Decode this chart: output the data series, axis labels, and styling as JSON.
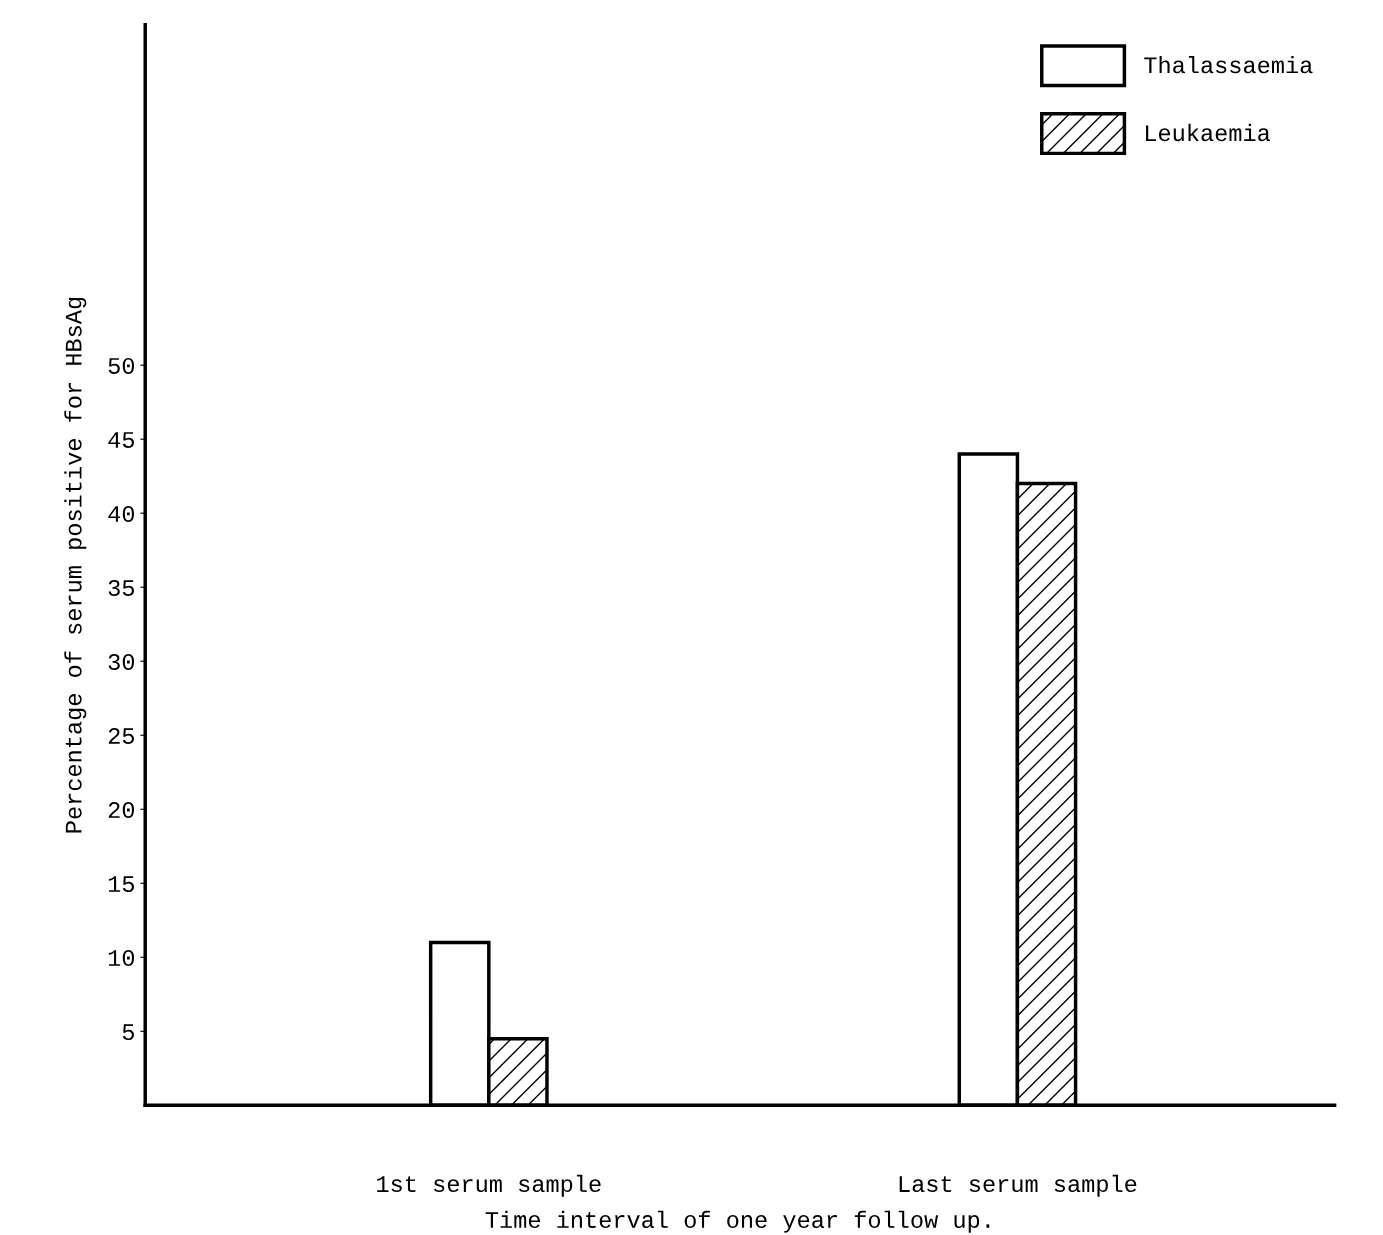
{
  "chart_data": {
    "type": "bar",
    "xlabel": "Time interval of one year follow up.",
    "ylabel": "Percentage of serum positive for HBsAg",
    "categories": [
      "1st serum sample",
      "Last serum sample"
    ],
    "series": [
      {
        "name": "Thalassaemia",
        "color": "#ffffff",
        "values": [
          11,
          44
        ]
      },
      {
        "name": "Leukaemia",
        "color": "#000000",
        "values": [
          4.5,
          42
        ]
      }
    ],
    "ylim": [
      0,
      73
    ],
    "yticks": [
      5,
      10,
      15,
      20,
      25,
      30,
      35,
      40,
      45,
      50
    ],
    "grid": false,
    "legend": "top right"
  }
}
